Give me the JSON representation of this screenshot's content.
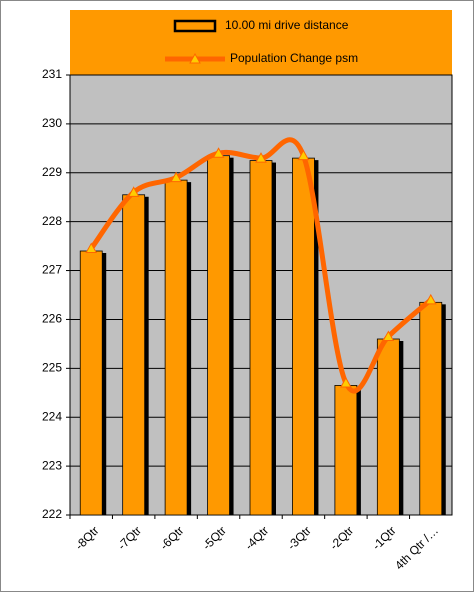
{
  "chart_data": {
    "type": "bar",
    "categories": [
      "-8Qtr",
      "-7Qtr",
      "-6Qtr",
      "-5Qtr",
      "-4Qtr",
      "-3Qtr",
      "-2Qtr",
      "-1Qtr",
      "4th Qtr /…"
    ],
    "series": [
      {
        "name": "10.00 mi drive distance",
        "type": "bar",
        "color": "#ff9900",
        "values": [
          227.4,
          228.55,
          228.85,
          229.35,
          229.25,
          229.3,
          224.65,
          225.6,
          226.35
        ]
      },
      {
        "name": "Population Change psm",
        "type": "line",
        "color": "#ff6600",
        "marker_color": "#ffcc00",
        "values": [
          227.45,
          228.6,
          228.9,
          229.4,
          229.3,
          229.35,
          224.7,
          225.65,
          226.4
        ]
      }
    ],
    "ylim": [
      222,
      231
    ],
    "yticks": [
      222,
      223,
      224,
      225,
      226,
      227,
      228,
      229,
      230,
      231
    ],
    "grid": true
  }
}
